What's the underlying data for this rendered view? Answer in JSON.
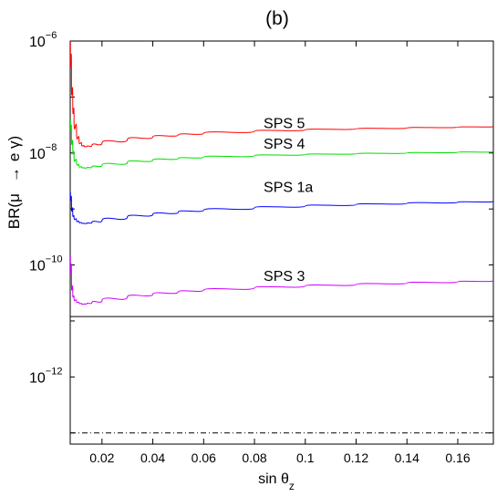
{
  "chart_data": {
    "type": "line",
    "title": "(b)",
    "xlabel": {
      "base": "sin θ",
      "sub": "z"
    },
    "ylabel": {
      "prefix": "BR(μ",
      "arrow": "→",
      "suffix": "e γ)"
    },
    "xlim": [
      0.0075,
      0.174
    ],
    "ylim": [
      -13.2,
      -6
    ],
    "yscale": "log",
    "xticks": [
      0.02,
      0.04,
      0.06,
      0.08,
      0.1,
      0.12,
      0.14,
      0.16
    ],
    "xtick_labels": [
      "0.02",
      "0.04",
      "0.06",
      "0.08",
      "0.1",
      "0.12",
      "0.14",
      "0.16"
    ],
    "yticks": [
      {
        "exp": -6,
        "base": "10",
        "sup": "−6"
      },
      {
        "exp": -8,
        "base": "10",
        "sup": "−8"
      },
      {
        "exp": -10,
        "base": "10",
        "sup": "−10"
      },
      {
        "exp": -12,
        "base": "10",
        "sup": "−12"
      }
    ],
    "hlines": [
      {
        "y": 1.2e-11,
        "style": "solid",
        "color": "#000000"
      },
      {
        "y": 1e-13,
        "style": "dashdot",
        "color": "#000000"
      }
    ],
    "series": [
      {
        "color": "#ff0000",
        "label": "SPS 5",
        "label_at": {
          "x": 0.08,
          "y": 3.5e-08
        },
        "x": [
          0.0076,
          0.008,
          0.0085,
          0.009,
          0.01,
          0.011,
          0.012,
          0.013,
          0.014,
          0.016,
          0.02,
          0.03,
          0.04,
          0.05,
          0.06,
          0.08,
          0.1,
          0.12,
          0.14,
          0.16,
          0.174
        ],
        "y": [
          1e-06,
          2e-07,
          8e-08,
          4e-08,
          2.2e-08,
          1.6e-08,
          1.4e-08,
          1.3e-08,
          1.3e-08,
          1.35e-08,
          1.5e-08,
          1.75e-08,
          1.95e-08,
          2.1e-08,
          2.25e-08,
          2.45e-08,
          2.6e-08,
          2.7e-08,
          2.8e-08,
          2.9e-08,
          2.95e-08
        ]
      },
      {
        "color": "#00dd00",
        "label": "SPS 4",
        "label_at": {
          "x": 0.08,
          "y": 1.5e-08
        },
        "x": [
          0.0076,
          0.008,
          0.0085,
          0.009,
          0.01,
          0.011,
          0.012,
          0.013,
          0.014,
          0.016,
          0.02,
          0.03,
          0.04,
          0.05,
          0.06,
          0.08,
          0.1,
          0.12,
          0.14,
          0.16,
          0.174
        ],
        "y": [
          4e-08,
          2e-08,
          1.2e-08,
          8.5e-09,
          6.5e-09,
          5.8e-09,
          5.5e-09,
          5.4e-09,
          5.4e-09,
          5.6e-09,
          6e-09,
          6.8e-09,
          7.5e-09,
          8e-09,
          8.4e-09,
          9e-09,
          9.4e-09,
          9.7e-09,
          1e-08,
          1.03e-08,
          1.05e-08
        ]
      },
      {
        "color": "#0000ff",
        "label": "SPS 1a",
        "label_at": {
          "x": 0.08,
          "y": 2.5e-09
        },
        "x": [
          0.0076,
          0.008,
          0.0085,
          0.009,
          0.01,
          0.011,
          0.012,
          0.013,
          0.014,
          0.016,
          0.02,
          0.03,
          0.04,
          0.05,
          0.06,
          0.08,
          0.1,
          0.12,
          0.14,
          0.16,
          0.174
        ],
        "y": [
          2e-09,
          1.2e-09,
          8e-10,
          7e-10,
          6.2e-10,
          5.8e-10,
          5.6e-10,
          5.5e-10,
          5.5e-10,
          5.7e-10,
          6.2e-10,
          7.2e-10,
          8e-10,
          8.8e-10,
          9.5e-10,
          1.05e-09,
          1.13e-09,
          1.2e-09,
          1.26e-09,
          1.32e-09,
          1.36e-09
        ]
      },
      {
        "color": "#cc00ff",
        "label": "SPS 3",
        "label_at": {
          "x": 0.08,
          "y": 6.5e-11
        },
        "x": [
          0.0076,
          0.008,
          0.0085,
          0.009,
          0.01,
          0.011,
          0.012,
          0.013,
          0.014,
          0.016,
          0.02,
          0.03,
          0.04,
          0.05,
          0.06,
          0.08,
          0.1,
          0.12,
          0.14,
          0.16,
          0.174
        ],
        "y": [
          1.5e-10,
          5e-11,
          3e-11,
          2.5e-11,
          2.2e-11,
          2.1e-11,
          2e-11,
          2e-11,
          2.02e-11,
          2.1e-11,
          2.3e-11,
          2.7e-11,
          3e-11,
          3.3e-11,
          3.55e-11,
          3.9e-11,
          4.2e-11,
          4.5e-11,
          4.75e-11,
          5e-11,
          5.2e-11
        ]
      }
    ]
  }
}
